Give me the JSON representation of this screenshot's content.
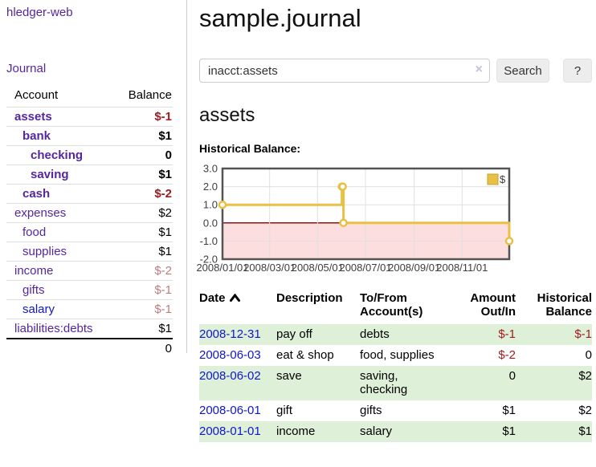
{
  "palette": {
    "link_purple": "#55269c",
    "link_blue": "#0f16cc",
    "negative_strong": "#9e1b1e",
    "negative_soft": "#bd7d7f",
    "row_green": "#dff0d8"
  },
  "sidebar": {
    "brand": "hledger-web",
    "journal_label": "Journal",
    "accounts_table": {
      "headers": [
        "Account",
        "Balance"
      ],
      "rows": [
        {
          "account": "assets",
          "depth": 1,
          "bold": true,
          "balance": "$-1"
        },
        {
          "account": "bank",
          "depth": 2,
          "bold": true,
          "balance": "$1"
        },
        {
          "account": "checking",
          "depth": 3,
          "bold": true,
          "balance": "0"
        },
        {
          "account": "saving",
          "depth": 3,
          "bold": true,
          "balance": "$1"
        },
        {
          "account": "cash",
          "depth": 2,
          "bold": true,
          "balance": "$-2"
        },
        {
          "account": "expenses",
          "depth": 1,
          "bold": false,
          "balance": "$2"
        },
        {
          "account": "food",
          "depth": 2,
          "bold": false,
          "balance": "$1"
        },
        {
          "account": "supplies",
          "depth": 2,
          "bold": false,
          "balance": "$1"
        },
        {
          "account": "income",
          "depth": 1,
          "bold": false,
          "balance": "$-2"
        },
        {
          "account": "gifts",
          "depth": 2,
          "bold": false,
          "balance": "$-1"
        },
        {
          "account": "salary",
          "depth": 2,
          "bold": false,
          "balance": "$-1",
          "link_color": "blue"
        },
        {
          "account": "liabilities:debts",
          "depth": 1,
          "bold": false,
          "balance": "$1"
        }
      ],
      "total": "0"
    }
  },
  "main": {
    "title": "sample.journal",
    "search": {
      "value": "inacct:assets",
      "clear_icon": "×",
      "button_label": "Search",
      "help_label": "?"
    },
    "account_heading": "assets",
    "chart_label": "Historical Balance:"
  },
  "chart_data": {
    "type": "line",
    "step": true,
    "title": "Historical Balance:",
    "series": [
      {
        "name": "$",
        "color": "#e9c044",
        "points": [
          {
            "date": "2008-01-01",
            "value": 1
          },
          {
            "date": "2008-06-01",
            "value": 2
          },
          {
            "date": "2008-06-02",
            "value": 2
          },
          {
            "date": "2008-06-03",
            "value": 0
          },
          {
            "date": "2008-12-31",
            "value": -1
          }
        ]
      }
    ],
    "ylim": [
      -2.0,
      3.0
    ],
    "yticks": [
      3.0,
      2.0,
      1.0,
      0.0,
      -1.0,
      -2.0
    ],
    "xticks": [
      "2008/01/01",
      "2008/03/01",
      "2008/05/01",
      "2008/07/01",
      "2008/09/01",
      "2008/11/01"
    ],
    "legend_position": "top-right",
    "grid": true,
    "colors": {
      "negative_fill": "#fcdede",
      "zero_line": "#961215",
      "grid": "#e0e0e0",
      "border": "#545454",
      "text": "#3d3d3d",
      "legend_border": "#c2a23a",
      "marker_fill": "#ffffff"
    }
  },
  "register_table": {
    "headers": [
      {
        "label": "Date"
      },
      {
        "label": "Description"
      },
      {
        "label": "To/From\nAccount(s)"
      },
      {
        "label": "Amount\nOut/In"
      },
      {
        "label": "Historical\nBalance"
      }
    ],
    "rows": [
      {
        "date": "2008-12-31",
        "description": "pay off",
        "accounts": "debts",
        "amount": "$-1",
        "balance": "$-1"
      },
      {
        "date": "2008-06-03",
        "description": "eat & shop",
        "accounts": "food, supplies",
        "amount": "$-2",
        "balance": "0"
      },
      {
        "date": "2008-06-02",
        "description": "save",
        "accounts": "saving, checking",
        "amount": "0",
        "balance": "$2"
      },
      {
        "date": "2008-06-01",
        "description": "gift",
        "accounts": "gifts",
        "amount": "$1",
        "balance": "$2"
      },
      {
        "date": "2008-01-01",
        "description": "income",
        "accounts": "salary",
        "amount": "$1",
        "balance": "$1"
      }
    ]
  }
}
